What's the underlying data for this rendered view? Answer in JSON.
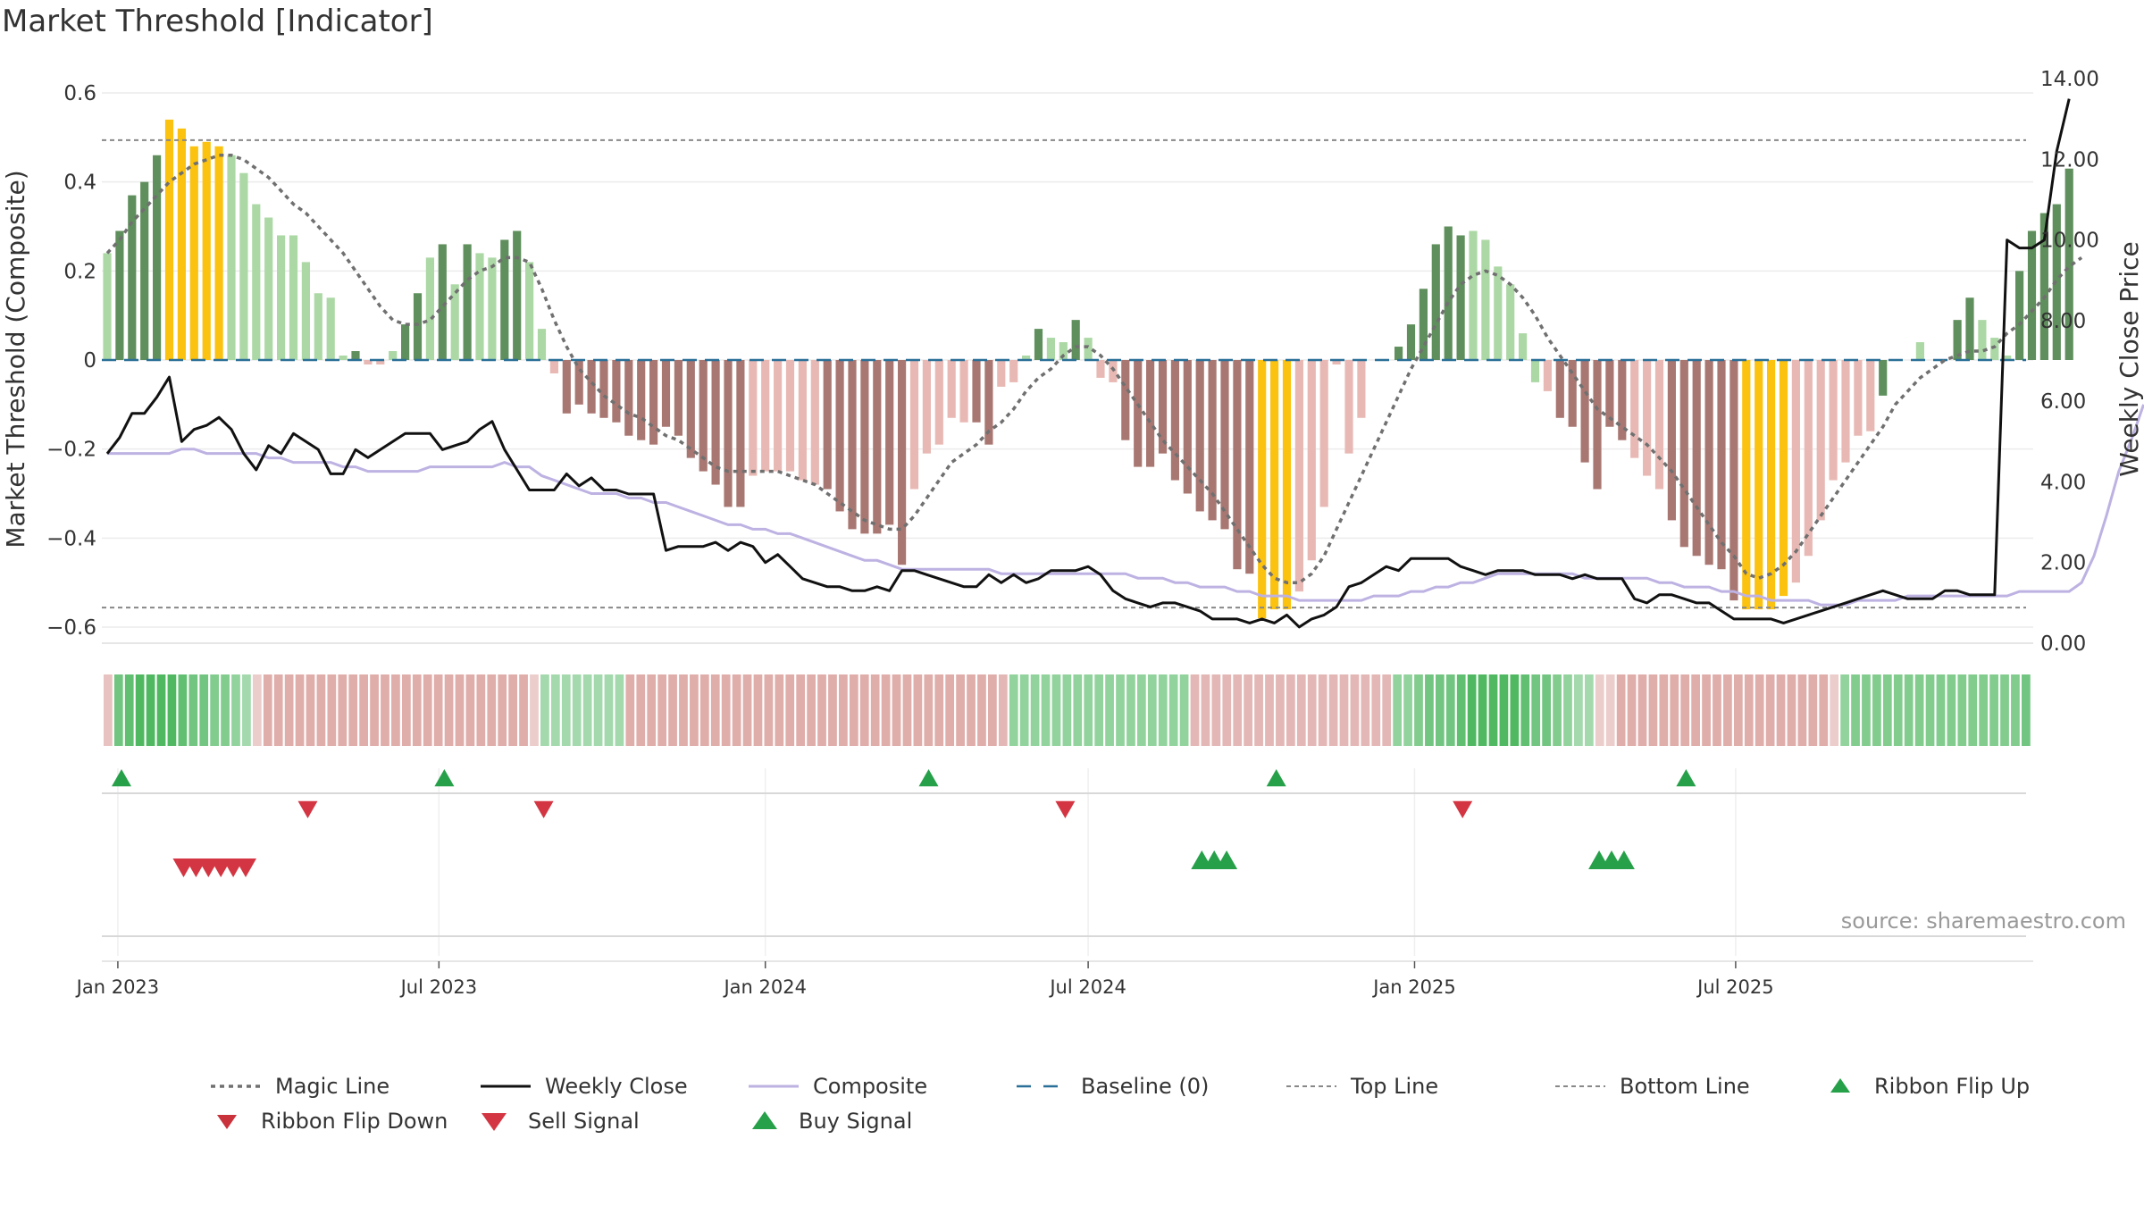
{
  "title": "Market Threshold [Indicator]",
  "source_note": "source: sharemaestro.com",
  "colors": {
    "magic": "#707070",
    "close": "#111111",
    "composite": "#bdb2e2",
    "baseline": "#2a6f97",
    "threshold": "#888888",
    "pos_strong": "#5f8f5c",
    "pos_weak": "#acd8a5",
    "neg_strong": "#a97772",
    "neg_weak": "#e8b9b4",
    "extreme": "#fbc20f",
    "buy": "#27a04a",
    "sell": "#d33642"
  },
  "chart_data": {
    "type": "bar",
    "title": "Market Threshold [Indicator]",
    "ylabel": "Market Threshold (Composite)",
    "y2label": "Weekly Close Price",
    "ylim": [
      -0.64,
      0.62
    ],
    "y2lim": [
      0,
      14
    ],
    "yticks": [
      "0.6",
      "0.4",
      "0.2",
      "0",
      "−0.2",
      "−0.4",
      "−0.6"
    ],
    "y2ticks": [
      "14.00",
      "12.00",
      "10.00",
      "8.00",
      "6.00",
      "4.00",
      "2.00",
      "0.00"
    ],
    "xticks": [
      "Jan 2023",
      "Jul 2023",
      "Jan 2024",
      "Jul 2024",
      "Jan 2025",
      "Jul 2025"
    ],
    "start_date": "2022-12-26",
    "grid": true,
    "top_line": 0.494,
    "bottom_line": -0.556,
    "baseline": 0,
    "composite_bars": [
      0.24,
      0.29,
      0.37,
      0.4,
      0.46,
      0.54,
      0.52,
      0.48,
      0.49,
      0.48,
      0.46,
      0.42,
      0.35,
      0.32,
      0.28,
      0.28,
      0.22,
      0.15,
      0.14,
      0.01,
      0.02,
      -0.01,
      -0.01,
      0.02,
      0.08,
      0.15,
      0.23,
      0.26,
      0.17,
      0.26,
      0.24,
      0.23,
      0.27,
      0.29,
      0.22,
      0.07,
      -0.03,
      -0.12,
      -0.1,
      -0.12,
      -0.13,
      -0.14,
      -0.17,
      -0.18,
      -0.19,
      -0.15,
      -0.17,
      -0.22,
      -0.25,
      -0.28,
      -0.33,
      -0.33,
      -0.26,
      -0.25,
      -0.25,
      -0.25,
      -0.27,
      -0.28,
      -0.29,
      -0.34,
      -0.38,
      -0.39,
      -0.39,
      -0.37,
      -0.46,
      -0.29,
      -0.21,
      -0.19,
      -0.13,
      -0.14,
      -0.14,
      -0.19,
      -0.06,
      -0.05,
      0.01,
      0.07,
      0.05,
      0.04,
      0.09,
      0.05,
      -0.04,
      -0.05,
      -0.18,
      -0.24,
      -0.24,
      -0.21,
      -0.27,
      -0.3,
      -0.34,
      -0.36,
      -0.38,
      -0.47,
      -0.48,
      -0.58,
      -0.56,
      -0.56,
      -0.52,
      -0.45,
      -0.33,
      -0.01,
      -0.21,
      -0.13,
      0,
      0,
      0.03,
      0.08,
      0.16,
      0.26,
      0.3,
      0.28,
      0.29,
      0.27,
      0.21,
      0.17,
      0.06,
      -0.05,
      -0.07,
      -0.13,
      -0.15,
      -0.23,
      -0.29,
      -0.15,
      -0.18,
      -0.22,
      -0.26,
      -0.29,
      -0.36,
      -0.42,
      -0.44,
      -0.46,
      -0.47,
      -0.54,
      -0.56,
      -0.56,
      -0.56,
      -0.53,
      -0.5,
      -0.44,
      -0.36,
      -0.27,
      -0.23,
      -0.17,
      -0.16,
      -0.08,
      0,
      0,
      0.04,
      0,
      0,
      0.09,
      0.14,
      0.09,
      0.05,
      0.01,
      0.2,
      0.29,
      0.33,
      0.35,
      0.43
    ],
    "bar_category": [
      1,
      2,
      2,
      2,
      2,
      4,
      4,
      4,
      4,
      4,
      1,
      1,
      1,
      1,
      1,
      1,
      1,
      1,
      1,
      1,
      2,
      3,
      3,
      1,
      2,
      2,
      1,
      2,
      1,
      2,
      1,
      1,
      2,
      2,
      1,
      1,
      3,
      5,
      5,
      5,
      5,
      5,
      5,
      5,
      5,
      5,
      5,
      5,
      5,
      5,
      5,
      5,
      3,
      3,
      3,
      3,
      3,
      3,
      5,
      5,
      5,
      5,
      5,
      5,
      5,
      3,
      3,
      3,
      3,
      3,
      5,
      5,
      3,
      3,
      1,
      2,
      1,
      1,
      2,
      1,
      3,
      3,
      5,
      5,
      5,
      5,
      5,
      5,
      5,
      5,
      5,
      5,
      5,
      4,
      4,
      4,
      3,
      3,
      3,
      3,
      3,
      3,
      2,
      2,
      2,
      2,
      2,
      2,
      2,
      2,
      1,
      1,
      1,
      1,
      1,
      1,
      3,
      5,
      5,
      5,
      5,
      5,
      5,
      3,
      3,
      3,
      5,
      5,
      5,
      5,
      5,
      5,
      4,
      4,
      4,
      4,
      3,
      3,
      3,
      3,
      3,
      3,
      3,
      2,
      1,
      2,
      1,
      1,
      1,
      2,
      2,
      1,
      1,
      1,
      2,
      2,
      2,
      2,
      2
    ],
    "magic_line": [
      0.24,
      0.27,
      0.31,
      0.34,
      0.37,
      0.4,
      0.42,
      0.44,
      0.45,
      0.46,
      0.46,
      0.45,
      0.43,
      0.41,
      0.38,
      0.35,
      0.33,
      0.3,
      0.27,
      0.24,
      0.2,
      0.16,
      0.12,
      0.09,
      0.08,
      0.08,
      0.09,
      0.12,
      0.15,
      0.18,
      0.2,
      0.21,
      0.23,
      0.23,
      0.22,
      0.16,
      0.09,
      0.03,
      -0.02,
      -0.05,
      -0.08,
      -0.1,
      -0.12,
      -0.13,
      -0.15,
      -0.17,
      -0.18,
      -0.2,
      -0.22,
      -0.24,
      -0.25,
      -0.25,
      -0.25,
      -0.25,
      -0.25,
      -0.26,
      -0.27,
      -0.28,
      -0.3,
      -0.32,
      -0.34,
      -0.36,
      -0.37,
      -0.38,
      -0.38,
      -0.35,
      -0.31,
      -0.27,
      -0.23,
      -0.21,
      -0.19,
      -0.16,
      -0.14,
      -0.11,
      -0.07,
      -0.04,
      -0.02,
      0.01,
      0.03,
      0.03,
      0.01,
      -0.02,
      -0.06,
      -0.1,
      -0.14,
      -0.18,
      -0.21,
      -0.24,
      -0.27,
      -0.3,
      -0.34,
      -0.38,
      -0.42,
      -0.46,
      -0.49,
      -0.5,
      -0.5,
      -0.48,
      -0.44,
      -0.38,
      -0.32,
      -0.26,
      -0.2,
      -0.14,
      -0.08,
      -0.02,
      0.03,
      0.08,
      0.13,
      0.17,
      0.19,
      0.2,
      0.19,
      0.17,
      0.14,
      0.1,
      0.05,
      0.01,
      -0.03,
      -0.07,
      -0.11,
      -0.13,
      -0.15,
      -0.17,
      -0.19,
      -0.22,
      -0.25,
      -0.29,
      -0.33,
      -0.37,
      -0.41,
      -0.44,
      -0.48,
      -0.49,
      -0.48,
      -0.46,
      -0.43,
      -0.39,
      -0.35,
      -0.31,
      -0.27,
      -0.23,
      -0.19,
      -0.15,
      -0.1,
      -0.07,
      -0.04,
      -0.02,
      0,
      0.01,
      0.02,
      0.02,
      0.03,
      0.06,
      0.08,
      0.11,
      0.14,
      0.18,
      0.21,
      0.23
    ],
    "composite_line": [
      -0.21,
      -0.21,
      -0.21,
      -0.21,
      -0.21,
      -0.21,
      -0.2,
      -0.2,
      -0.21,
      -0.21,
      -0.21,
      -0.21,
      -0.21,
      -0.22,
      -0.22,
      -0.23,
      -0.23,
      -0.23,
      -0.23,
      -0.24,
      -0.24,
      -0.25,
      -0.25,
      -0.25,
      -0.25,
      -0.25,
      -0.24,
      -0.24,
      -0.24,
      -0.24,
      -0.24,
      -0.24,
      -0.23,
      -0.24,
      -0.24,
      -0.26,
      -0.27,
      -0.28,
      -0.29,
      -0.3,
      -0.3,
      -0.3,
      -0.31,
      -0.31,
      -0.32,
      -0.32,
      -0.33,
      -0.34,
      -0.35,
      -0.36,
      -0.37,
      -0.37,
      -0.38,
      -0.38,
      -0.39,
      -0.39,
      -0.4,
      -0.41,
      -0.42,
      -0.43,
      -0.44,
      -0.45,
      -0.45,
      -0.46,
      -0.47,
      -0.47,
      -0.47,
      -0.47,
      -0.47,
      -0.47,
      -0.47,
      -0.47,
      -0.48,
      -0.48,
      -0.48,
      -0.48,
      -0.48,
      -0.48,
      -0.48,
      -0.48,
      -0.48,
      -0.48,
      -0.48,
      -0.49,
      -0.49,
      -0.49,
      -0.5,
      -0.5,
      -0.51,
      -0.51,
      -0.51,
      -0.52,
      -0.52,
      -0.53,
      -0.53,
      -0.53,
      -0.54,
      -0.54,
      -0.54,
      -0.54,
      -0.54,
      -0.54,
      -0.53,
      -0.53,
      -0.53,
      -0.52,
      -0.52,
      -0.51,
      -0.51,
      -0.5,
      -0.5,
      -0.49,
      -0.48,
      -0.48,
      -0.48,
      -0.48,
      -0.48,
      -0.48,
      -0.48,
      -0.49,
      -0.49,
      -0.49,
      -0.49,
      -0.49,
      -0.49,
      -0.5,
      -0.5,
      -0.51,
      -0.51,
      -0.51,
      -0.52,
      -0.52,
      -0.53,
      -0.53,
      -0.54,
      -0.54,
      -0.54,
      -0.54,
      -0.55,
      -0.55,
      -0.55,
      -0.54,
      -0.54,
      -0.54,
      -0.54,
      -0.53,
      -0.53,
      -0.53,
      -0.53,
      -0.53,
      -0.53,
      -0.53,
      -0.53,
      -0.53,
      -0.52,
      -0.52,
      -0.52,
      -0.52,
      -0.52,
      -0.5,
      -0.44,
      -0.35,
      -0.25,
      -0.18,
      -0.1
    ],
    "weekly_close": [
      4.7,
      5.1,
      5.7,
      5.7,
      6.1,
      6.6,
      5.0,
      5.3,
      5.4,
      5.6,
      5.3,
      4.7,
      4.3,
      4.9,
      4.7,
      5.2,
      5.0,
      4.8,
      4.2,
      4.2,
      4.8,
      4.6,
      4.8,
      5.0,
      5.2,
      5.2,
      5.2,
      4.8,
      4.9,
      5.0,
      5.3,
      5.5,
      4.8,
      4.3,
      3.8,
      3.8,
      3.8,
      4.2,
      3.9,
      4.1,
      3.8,
      3.8,
      3.7,
      3.7,
      3.7,
      2.3,
      2.4,
      2.4,
      2.4,
      2.5,
      2.3,
      2.5,
      2.4,
      2.0,
      2.2,
      1.9,
      1.6,
      1.5,
      1.4,
      1.4,
      1.3,
      1.3,
      1.4,
      1.3,
      1.8,
      1.8,
      1.7,
      1.6,
      1.5,
      1.4,
      1.4,
      1.7,
      1.5,
      1.7,
      1.5,
      1.6,
      1.8,
      1.8,
      1.8,
      1.9,
      1.7,
      1.3,
      1.1,
      1.0,
      0.9,
      1.0,
      1.0,
      0.9,
      0.8,
      0.6,
      0.6,
      0.6,
      0.5,
      0.6,
      0.5,
      0.7,
      0.4,
      0.6,
      0.7,
      0.9,
      1.4,
      1.5,
      1.7,
      1.9,
      1.8,
      2.1,
      2.1,
      2.1,
      2.1,
      1.9,
      1.8,
      1.7,
      1.8,
      1.8,
      1.8,
      1.7,
      1.7,
      1.7,
      1.6,
      1.7,
      1.6,
      1.6,
      1.6,
      1.1,
      1.0,
      1.2,
      1.2,
      1.1,
      1.0,
      1.0,
      0.8,
      0.6,
      0.6,
      0.6,
      0.6,
      0.5,
      0.6,
      0.7,
      0.8,
      0.9,
      1.0,
      1.1,
      1.2,
      1.3,
      1.2,
      1.1,
      1.1,
      1.1,
      1.3,
      1.3,
      1.2,
      1.2,
      1.2,
      10.0,
      9.8,
      9.8,
      10.0,
      12.2,
      13.5
    ],
    "ribbon_strength": [
      -0.3,
      0.6,
      0.7,
      0.8,
      0.8,
      0.8,
      0.8,
      0.7,
      0.6,
      0.6,
      0.5,
      0.5,
      0.4,
      0.3,
      -0.2,
      -0.5,
      -0.5,
      -0.5,
      -0.5,
      -0.5,
      -0.5,
      -0.5,
      -0.5,
      -0.5,
      -0.5,
      -0.5,
      -0.5,
      -0.5,
      -0.5,
      -0.5,
      -0.5,
      -0.5,
      -0.5,
      -0.5,
      -0.5,
      -0.5,
      -0.5,
      -0.5,
      -0.5,
      -0.5,
      -0.2,
      0.3,
      0.3,
      0.3,
      0.3,
      0.3,
      0.3,
      0.3,
      0.3,
      -0.5,
      -0.5,
      -0.5,
      -0.5,
      -0.5,
      -0.5,
      -0.5,
      -0.5,
      -0.5,
      -0.5,
      -0.5,
      -0.5,
      -0.5,
      -0.5,
      -0.5,
      -0.5,
      -0.5,
      -0.5,
      -0.5,
      -0.5,
      -0.5,
      -0.5,
      -0.5,
      -0.5,
      -0.5,
      -0.5,
      -0.5,
      -0.5,
      -0.5,
      -0.5,
      -0.5,
      -0.5,
      -0.5,
      -0.5,
      -0.5,
      -0.4,
      0.4,
      0.4,
      0.4,
      0.4,
      0.4,
      0.4,
      0.4,
      0.4,
      0.4,
      0.4,
      0.4,
      0.4,
      0.4,
      0.4,
      0.4,
      0.4,
      0.4,
      -0.4,
      -0.4,
      -0.4,
      -0.4,
      -0.4,
      -0.4,
      -0.4,
      -0.4,
      -0.4,
      -0.4,
      -0.4,
      -0.4,
      -0.4,
      -0.4,
      -0.4,
      -0.4,
      -0.4,
      -0.4,
      -0.4,
      0.4,
      0.4,
      0.5,
      0.6,
      0.6,
      0.6,
      0.7,
      0.8,
      0.8,
      0.8,
      0.8,
      0.8,
      0.7,
      0.6,
      0.6,
      0.5,
      0.4,
      0.3,
      0.3,
      -0.2,
      -0.2,
      -0.5,
      -0.5,
      -0.5,
      -0.5,
      -0.5,
      -0.5,
      -0.5,
      -0.5,
      -0.5,
      -0.5,
      -0.5,
      -0.5,
      -0.5,
      -0.5,
      -0.5,
      -0.5,
      -0.5,
      -0.5,
      -0.5,
      -0.5,
      -0.2,
      0.4,
      0.5,
      0.5,
      0.5,
      0.5,
      0.5,
      0.5,
      0.5,
      0.5,
      0.5,
      0.5,
      0.5,
      0.5,
      0.5,
      0.5,
      0.5,
      0.5,
      0.6
    ],
    "ribbon_flip_up": [
      "2022-12-26",
      "2023-06-26",
      "2024-03-25",
      "2024-10-07",
      "2025-05-26"
    ],
    "ribbon_flip_down": [
      "2023-04-10",
      "2023-08-21",
      "2024-06-10",
      "2025-01-20"
    ],
    "sell_signals": [
      "2023-01-30",
      "2023-02-06",
      "2023-02-13",
      "2023-02-20",
      "2023-02-27",
      "2023-03-06"
    ],
    "buy_signals": [
      "2024-08-26",
      "2024-09-02",
      "2024-09-09",
      "2025-04-07",
      "2025-04-14",
      "2025-04-21"
    ],
    "legend": [
      {
        "key": "magic",
        "label": "Magic Line"
      },
      {
        "key": "close",
        "label": "Weekly Close"
      },
      {
        "key": "composite",
        "label": "Composite"
      },
      {
        "key": "baseline",
        "label": "Baseline (0)"
      },
      {
        "key": "top",
        "label": "Top Line"
      },
      {
        "key": "bottom",
        "label": "Bottom Line"
      },
      {
        "key": "flip-up",
        "label": "Ribbon Flip Up"
      },
      {
        "key": "flip-down",
        "label": "Ribbon Flip Down"
      },
      {
        "key": "sell",
        "label": "Sell Signal"
      },
      {
        "key": "buy",
        "label": "Buy Signal"
      }
    ],
    "legend_position": "bottom-center"
  }
}
